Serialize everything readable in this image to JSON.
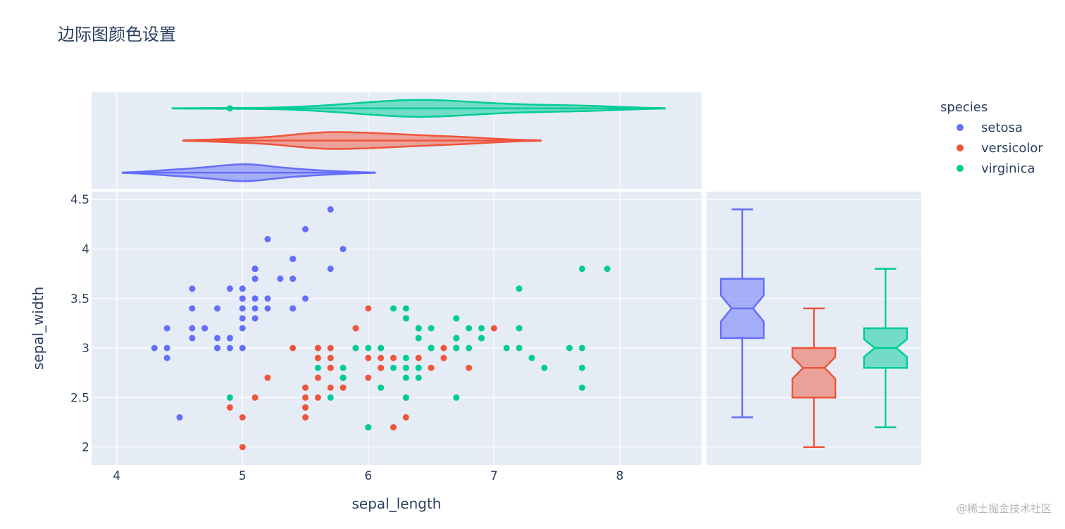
{
  "chart_data": {
    "type": "scatter",
    "title": "边际图颜色设置",
    "xlabel": "sepal_length",
    "ylabel": "sepal_width",
    "xlim": [
      3.8,
      8.65
    ],
    "ylim": [
      1.82,
      4.58
    ],
    "xticks": [
      4,
      5,
      6,
      7,
      8
    ],
    "yticks": [
      2,
      2.5,
      3,
      3.5,
      4,
      4.5
    ],
    "grid": true,
    "legend_title": "species",
    "legend_position": "right",
    "marginal_x": "violin",
    "marginal_y": "box",
    "series": [
      {
        "name": "setosa",
        "color": "#636efa",
        "points": [
          [
            5.1,
            3.5
          ],
          [
            4.9,
            3.0
          ],
          [
            4.7,
            3.2
          ],
          [
            4.6,
            3.1
          ],
          [
            5.0,
            3.6
          ],
          [
            5.4,
            3.9
          ],
          [
            4.6,
            3.4
          ],
          [
            5.0,
            3.4
          ],
          [
            4.4,
            2.9
          ],
          [
            4.9,
            3.1
          ],
          [
            5.4,
            3.7
          ],
          [
            4.8,
            3.4
          ],
          [
            4.8,
            3.0
          ],
          [
            4.3,
            3.0
          ],
          [
            5.8,
            4.0
          ],
          [
            5.7,
            4.4
          ],
          [
            5.4,
            3.9
          ],
          [
            5.1,
            3.5
          ],
          [
            5.7,
            3.8
          ],
          [
            5.1,
            3.8
          ],
          [
            5.4,
            3.4
          ],
          [
            5.1,
            3.7
          ],
          [
            4.6,
            3.6
          ],
          [
            5.1,
            3.3
          ],
          [
            4.8,
            3.4
          ],
          [
            5.0,
            3.0
          ],
          [
            5.0,
            3.4
          ],
          [
            5.2,
            3.5
          ],
          [
            5.2,
            3.4
          ],
          [
            4.7,
            3.2
          ],
          [
            4.8,
            3.1
          ],
          [
            5.4,
            3.4
          ],
          [
            5.2,
            4.1
          ],
          [
            5.5,
            4.2
          ],
          [
            4.9,
            3.1
          ],
          [
            5.0,
            3.2
          ],
          [
            5.5,
            3.5
          ],
          [
            4.9,
            3.6
          ],
          [
            4.4,
            3.0
          ],
          [
            5.1,
            3.4
          ],
          [
            5.0,
            3.5
          ],
          [
            4.5,
            2.3
          ],
          [
            4.4,
            3.2
          ],
          [
            5.0,
            3.5
          ],
          [
            5.1,
            3.8
          ],
          [
            4.8,
            3.0
          ],
          [
            5.1,
            3.8
          ],
          [
            4.6,
            3.2
          ],
          [
            5.3,
            3.7
          ],
          [
            5.0,
            3.3
          ]
        ],
        "violin": {
          "min": 4.3,
          "max": 5.8,
          "median": 5.0
        },
        "box": {
          "min": 2.3,
          "q1": 3.1,
          "median": 3.4,
          "q3": 3.7,
          "max": 4.4
        }
      },
      {
        "name": "versicolor",
        "color": "#ef553b",
        "points": [
          [
            7.0,
            3.2
          ],
          [
            6.4,
            3.2
          ],
          [
            6.9,
            3.1
          ],
          [
            5.5,
            2.3
          ],
          [
            6.5,
            2.8
          ],
          [
            5.7,
            2.8
          ],
          [
            6.3,
            3.3
          ],
          [
            4.9,
            2.4
          ],
          [
            6.6,
            2.9
          ],
          [
            5.2,
            2.7
          ],
          [
            5.0,
            2.0
          ],
          [
            5.9,
            3.0
          ],
          [
            6.0,
            2.2
          ],
          [
            6.1,
            2.9
          ],
          [
            5.6,
            2.9
          ],
          [
            6.7,
            3.1
          ],
          [
            5.6,
            3.0
          ],
          [
            5.8,
            2.7
          ],
          [
            6.2,
            2.2
          ],
          [
            5.6,
            2.5
          ],
          [
            5.9,
            3.2
          ],
          [
            6.1,
            2.8
          ],
          [
            6.3,
            2.5
          ],
          [
            6.1,
            2.8
          ],
          [
            6.4,
            2.9
          ],
          [
            6.6,
            3.0
          ],
          [
            6.8,
            2.8
          ],
          [
            6.7,
            3.0
          ],
          [
            6.0,
            2.9
          ],
          [
            5.7,
            2.6
          ],
          [
            5.5,
            2.4
          ],
          [
            5.5,
            2.4
          ],
          [
            5.8,
            2.7
          ],
          [
            6.0,
            2.7
          ],
          [
            5.4,
            3.0
          ],
          [
            6.0,
            3.4
          ],
          [
            6.7,
            3.1
          ],
          [
            6.3,
            2.3
          ],
          [
            5.6,
            3.0
          ],
          [
            5.5,
            2.5
          ],
          [
            5.5,
            2.6
          ],
          [
            6.1,
            3.0
          ],
          [
            5.8,
            2.6
          ],
          [
            5.0,
            2.3
          ],
          [
            5.6,
            2.7
          ],
          [
            5.7,
            3.0
          ],
          [
            5.7,
            2.9
          ],
          [
            6.2,
            2.9
          ],
          [
            5.1,
            2.5
          ],
          [
            5.7,
            2.8
          ]
        ],
        "violin": {
          "min": 4.9,
          "max": 7.0,
          "median": 5.9
        },
        "box": {
          "min": 2.0,
          "q1": 2.5,
          "median": 2.8,
          "q3": 3.0,
          "max": 3.4
        }
      },
      {
        "name": "virginica",
        "color": "#00cc96",
        "points": [
          [
            6.3,
            3.3
          ],
          [
            5.8,
            2.7
          ],
          [
            7.1,
            3.0
          ],
          [
            6.3,
            2.9
          ],
          [
            6.5,
            3.0
          ],
          [
            7.6,
            3.0
          ],
          [
            4.9,
            2.5
          ],
          [
            7.3,
            2.9
          ],
          [
            6.7,
            2.5
          ],
          [
            7.2,
            3.6
          ],
          [
            6.5,
            3.2
          ],
          [
            6.4,
            2.7
          ],
          [
            6.8,
            3.0
          ],
          [
            5.7,
            2.5
          ],
          [
            5.8,
            2.8
          ],
          [
            6.4,
            3.2
          ],
          [
            6.5,
            3.0
          ],
          [
            7.7,
            3.8
          ],
          [
            7.7,
            2.6
          ],
          [
            6.0,
            2.2
          ],
          [
            6.9,
            3.2
          ],
          [
            5.6,
            2.8
          ],
          [
            7.7,
            2.8
          ],
          [
            6.3,
            2.7
          ],
          [
            6.7,
            3.3
          ],
          [
            7.2,
            3.2
          ],
          [
            6.2,
            2.8
          ],
          [
            6.1,
            3.0
          ],
          [
            6.4,
            2.8
          ],
          [
            7.2,
            3.0
          ],
          [
            7.4,
            2.8
          ],
          [
            7.9,
            3.8
          ],
          [
            6.4,
            2.8
          ],
          [
            6.3,
            2.8
          ],
          [
            6.1,
            2.6
          ],
          [
            7.7,
            3.0
          ],
          [
            6.3,
            3.4
          ],
          [
            6.4,
            3.1
          ],
          [
            6.0,
            3.0
          ],
          [
            6.9,
            3.1
          ],
          [
            6.7,
            3.1
          ],
          [
            6.9,
            3.1
          ],
          [
            5.8,
            2.7
          ],
          [
            6.8,
            3.2
          ],
          [
            6.7,
            3.3
          ],
          [
            6.7,
            3.0
          ],
          [
            6.3,
            2.5
          ],
          [
            6.5,
            3.0
          ],
          [
            6.2,
            3.4
          ],
          [
            5.9,
            3.0
          ]
        ],
        "violin": {
          "min": 4.9,
          "max": 7.9,
          "median": 6.5
        },
        "box": {
          "min": 2.2,
          "q1": 2.8,
          "median": 3.0,
          "q3": 3.2,
          "max": 3.8
        }
      }
    ]
  },
  "watermark": "@稀土掘金技术社区"
}
